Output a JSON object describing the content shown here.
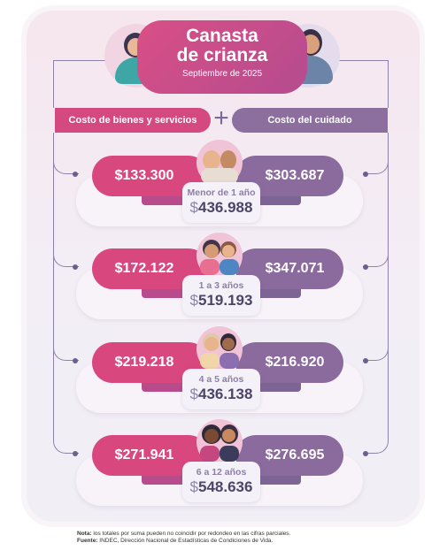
{
  "header": {
    "title_line1": "Canasta",
    "title_line2": "de crianza",
    "period": "Septiembre de 2025"
  },
  "columns": {
    "left": "Costo de bienes y servicios",
    "plus": "+",
    "right": "Costo del cuidado"
  },
  "rows": [
    {
      "goods": "$133.300",
      "care": "$303.687",
      "age": "Menor de 1 año",
      "currency": "$",
      "total": "436.988"
    },
    {
      "goods": "$172.122",
      "care": "$347.071",
      "age": "1 a 3 años",
      "currency": "$",
      "total": "519.193"
    },
    {
      "goods": "$219.218",
      "care": "$216.920",
      "age": "4 a 5 años",
      "currency": "$",
      "total": "436.138"
    },
    {
      "goods": "$271.941",
      "care": "$276.695",
      "age": "6 a 12 años",
      "currency": "$",
      "total": "548.636"
    }
  ],
  "footer": {
    "note_label": "Nota:",
    "note_text": " los totales por suma pueden no coincidir por redondeo en las cifras parciales.",
    "source_label": "Fuente:",
    "source_text": " INDEC, Dirección Nacional de Estadísticas de Condiciones de Vida."
  },
  "colors": {
    "pink": "#d9477f",
    "purple": "#8b6a9d",
    "text_dark": "#4e4466"
  }
}
